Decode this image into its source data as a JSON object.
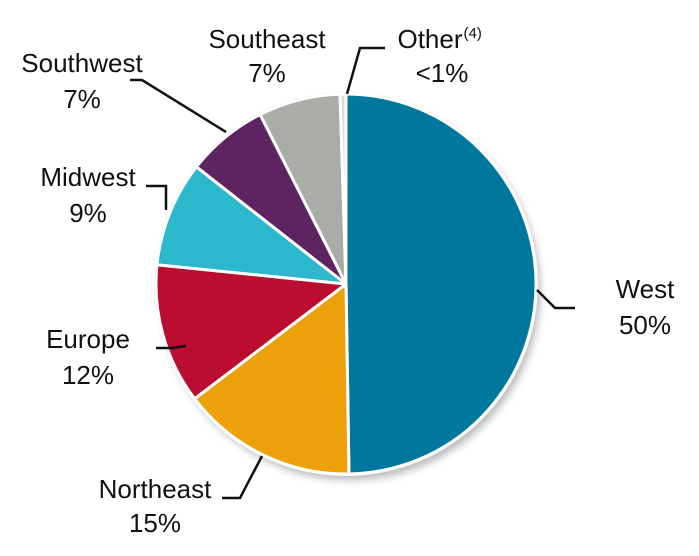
{
  "chart_data": {
    "type": "pie",
    "categories": [
      "West",
      "Northeast",
      "Europe",
      "Midwest",
      "Southwest",
      "Southeast",
      "Other"
    ],
    "category_superscripts": [
      null,
      null,
      null,
      null,
      null,
      null,
      "(4)"
    ],
    "values": [
      50,
      15,
      12,
      9,
      7,
      7,
      0.5
    ],
    "value_labels": [
      "50%",
      "15%",
      "12%",
      "9%",
      "7%",
      "7%",
      "<1%"
    ],
    "colors": [
      "#00789d",
      "#eca10b",
      "#bb0d2f",
      "#2bb8cc",
      "#5e2462",
      "#a9aca7",
      "#dcdcdc"
    ]
  }
}
